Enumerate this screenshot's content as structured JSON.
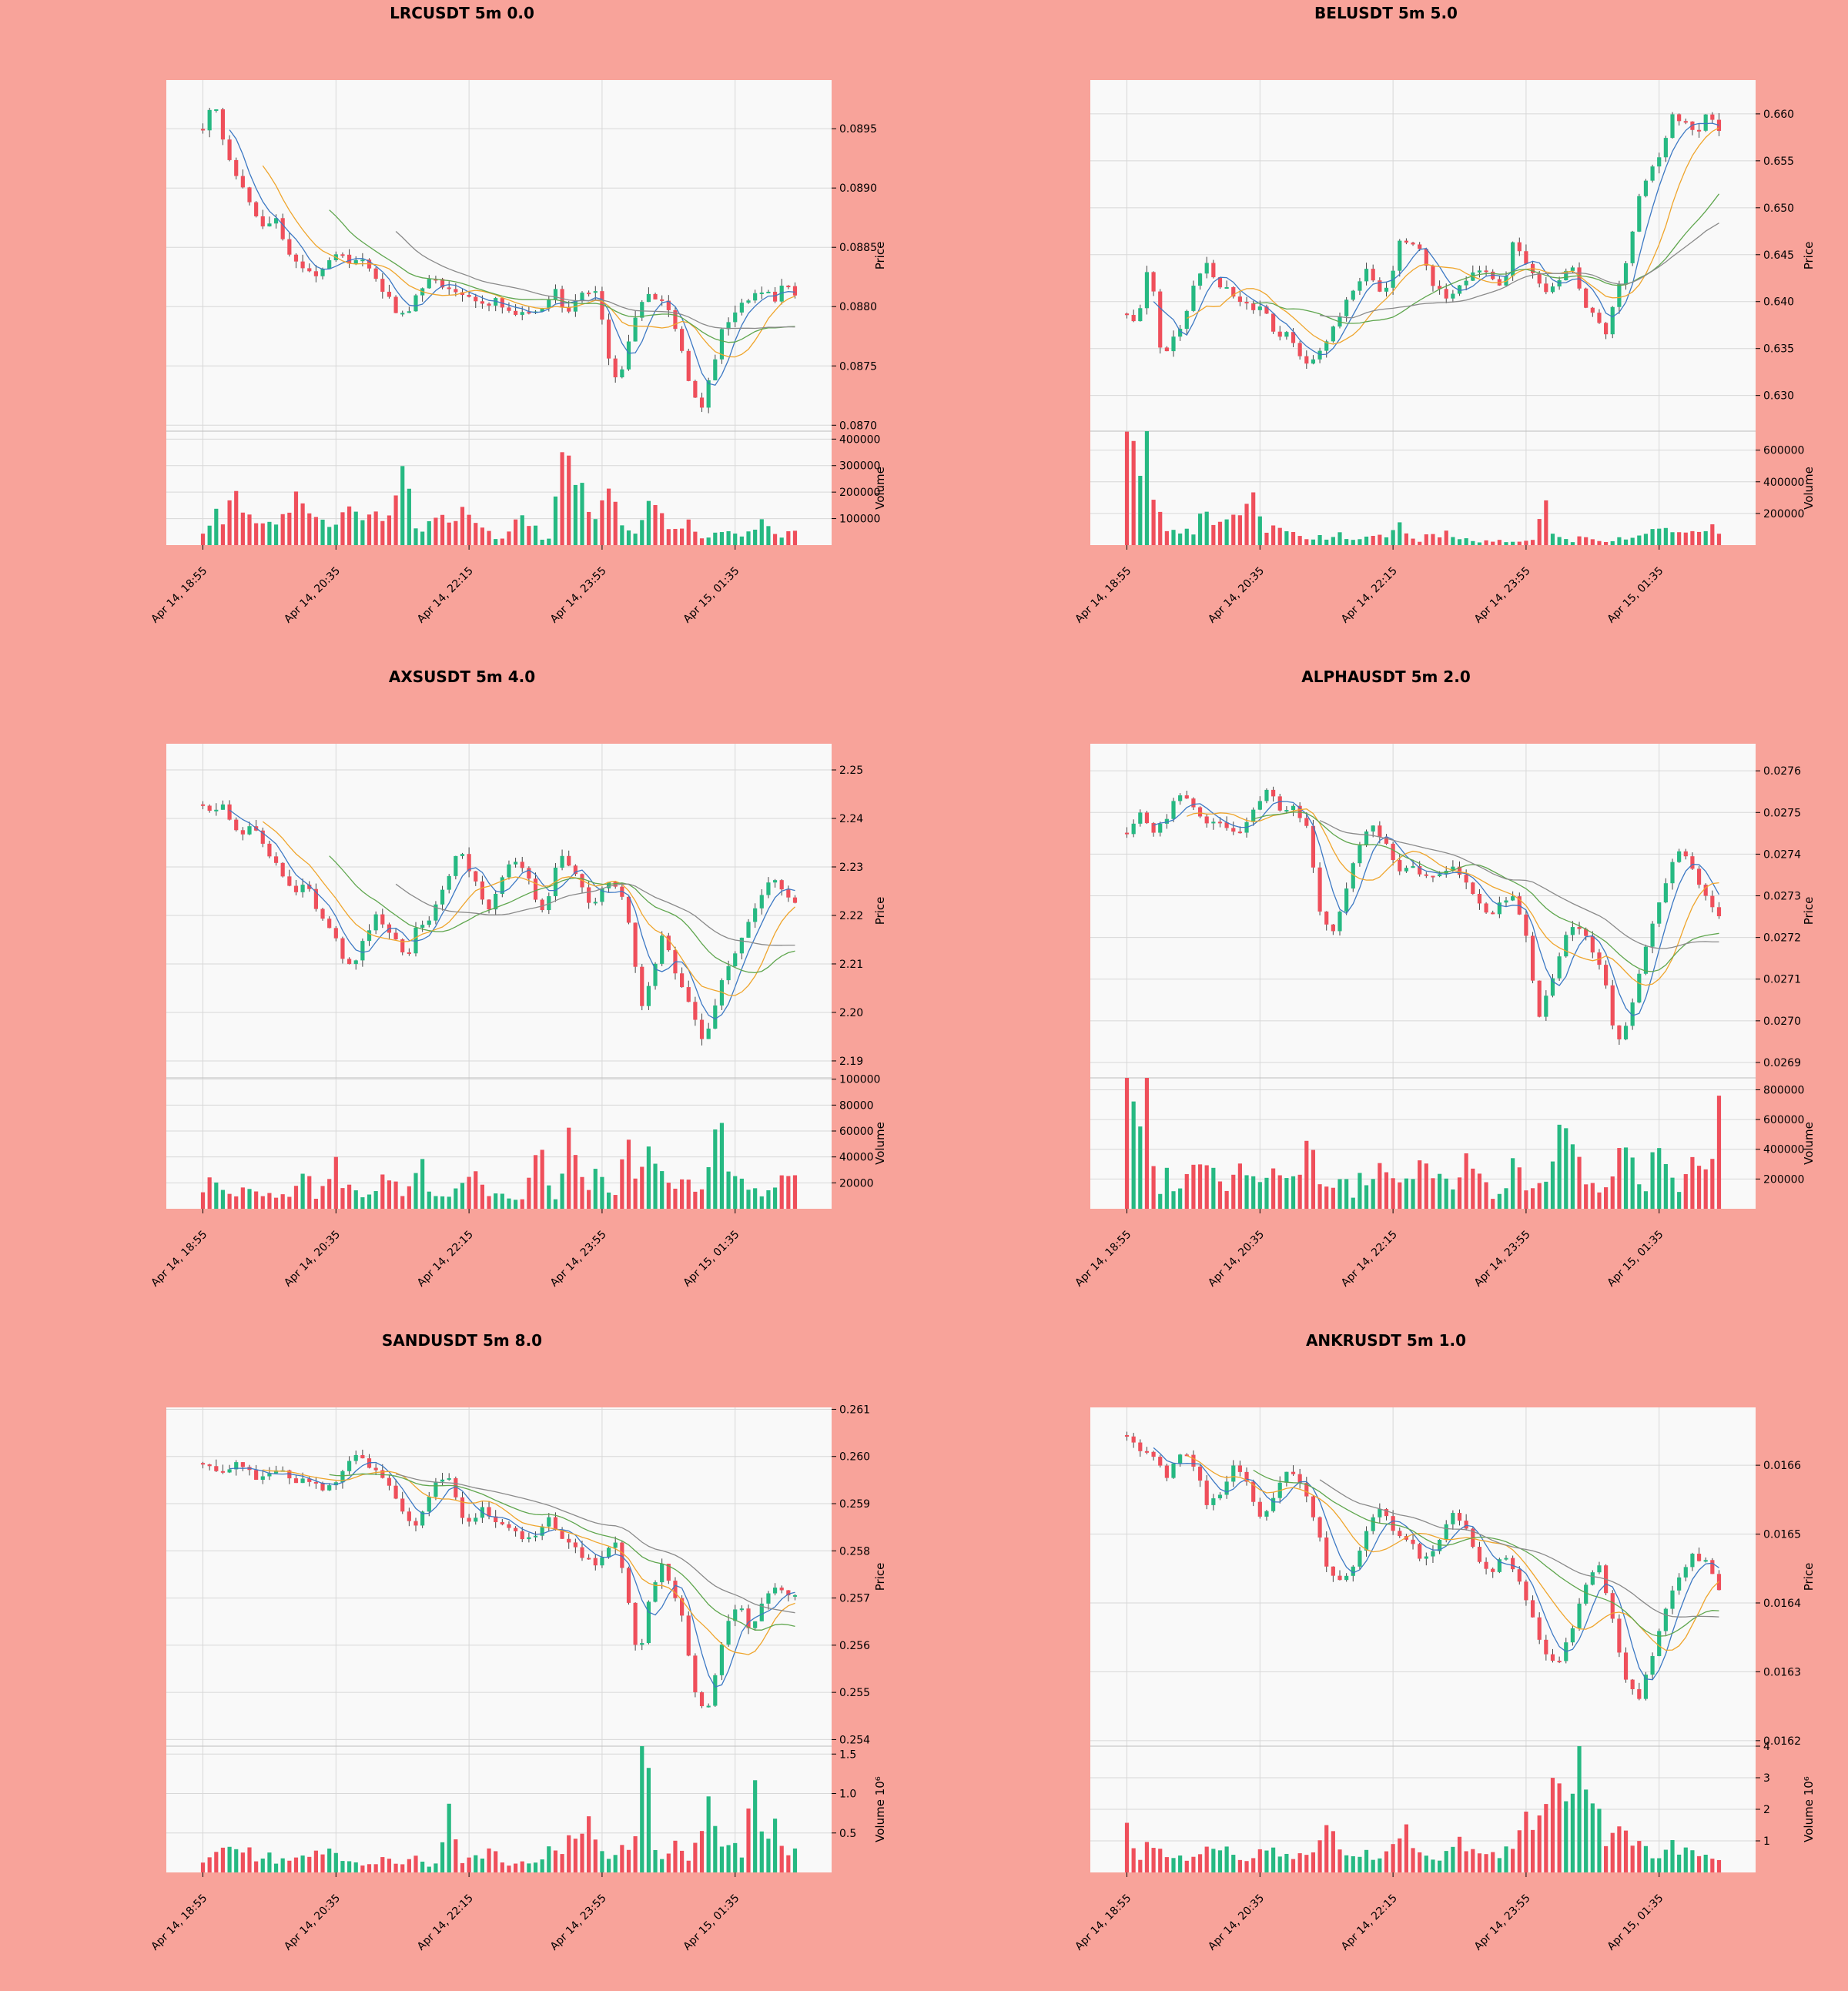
{
  "colors": {
    "background": "#F8A39A",
    "panel": "#F9F9F9",
    "grid": "#D8D8D8",
    "up": "#26B982",
    "down": "#EF4F5B",
    "ma_blue": "#3D79C4",
    "ma_orange": "#EFA52C",
    "ma_green": "#5FA64E",
    "ma_gray": "#8A8A8A"
  },
  "shared": {
    "x_tick_labels": [
      "Apr 14, 18:55",
      "Apr 14, 20:35",
      "Apr 14, 22:15",
      "Apr 14, 23:55",
      "Apr 15, 01:35"
    ],
    "price_axis_label": "Price",
    "volume_axis_label": "Volume"
  },
  "chart_data": [
    {
      "type": "candlestick",
      "title": "LRCUSDT 5m 0.0",
      "ylabel": "Price",
      "ylabel2": "Volume",
      "price_ticks": [
        "0.0895",
        "0.0890",
        "0.0885",
        "0.0880",
        "0.0875",
        "0.0870"
      ],
      "price_tick_values": [
        0.0895,
        0.089,
        0.0885,
        0.088,
        0.0875,
        0.087
      ],
      "price_ylim": [
        0.08695,
        0.08991
      ],
      "volume_ticks": [
        "400000",
        "300000",
        "200000",
        "100000"
      ],
      "volume_tick_values": [
        400000,
        300000,
        200000,
        100000
      ],
      "volume_ylim": [
        0,
        430000
      ],
      "volume_multiplier": "",
      "price_path": [
        0.0895,
        0.08975,
        0.0894,
        0.08915,
        0.08895,
        0.0888,
        0.08865,
        0.08875,
        0.0885,
        0.08835,
        0.0883,
        0.08825,
        0.0884,
        0.08845,
        0.08838,
        0.08842,
        0.08835,
        0.08815,
        0.08805,
        0.0879,
        0.088,
        0.08815,
        0.08828,
        0.08815,
        0.08812,
        0.0881,
        0.08805,
        0.088,
        0.08806,
        0.088,
        0.08795,
        0.08798,
        0.08795,
        0.08802,
        0.08815,
        0.0879,
        0.08805,
        0.08815,
        0.0881,
        0.0876,
        0.08735,
        0.0877,
        0.088,
        0.0881,
        0.08805,
        0.08795,
        0.08765,
        0.08725,
        0.08715,
        0.08745,
        0.0878,
        0.0879,
        0.08805,
        0.0881,
        0.08815,
        0.08805,
        0.08825,
        0.0881
      ],
      "volume_path": [
        50000,
        120000,
        110000,
        180000,
        150000,
        90000,
        60000,
        100000,
        170000,
        180000,
        100000,
        140000,
        70000,
        100000,
        120000,
        90000,
        110000,
        110000,
        180000,
        270000,
        60000,
        60000,
        90000,
        110000,
        90000,
        160000,
        100000,
        60000,
        20000,
        50000,
        100000,
        90000,
        20000,
        20000,
        420000,
        200000,
        230000,
        90000,
        230000,
        130000,
        70000,
        40000,
        150000,
        160000,
        60000,
        70000,
        90000,
        20000,
        30000,
        50000,
        60000,
        40000,
        40000,
        120000,
        40000,
        30000,
        60000
      ]
    },
    {
      "type": "candlestick",
      "title": "BELUSDT 5m 5.0",
      "ylabel": "Price",
      "ylabel2": "Volume",
      "price_ticks": [
        "0.660",
        "0.655",
        "0.650",
        "0.645",
        "0.640",
        "0.635",
        "0.630"
      ],
      "price_tick_values": [
        0.66,
        0.655,
        0.65,
        0.645,
        0.64,
        0.635,
        0.63
      ],
      "price_ylim": [
        0.6262,
        0.6636
      ],
      "volume_ticks": [
        "600000",
        "400000",
        "200000"
      ],
      "volume_tick_values": [
        600000,
        400000,
        200000
      ],
      "volume_ylim": [
        0,
        720000
      ],
      "volume_multiplier": "",
      "price_path": [
        0.6385,
        0.638,
        0.645,
        0.634,
        0.636,
        0.638,
        0.642,
        0.644,
        0.642,
        0.641,
        0.64,
        0.639,
        0.6395,
        0.636,
        0.637,
        0.6345,
        0.6335,
        0.635,
        0.637,
        0.6395,
        0.6415,
        0.6435,
        0.641,
        0.6415,
        0.6465,
        0.646,
        0.645,
        0.6415,
        0.6405,
        0.6415,
        0.6425,
        0.6435,
        0.6425,
        0.641,
        0.647,
        0.644,
        0.642,
        0.641,
        0.642,
        0.644,
        0.64,
        0.6385,
        0.6365,
        0.6405,
        0.645,
        0.651,
        0.654,
        0.656,
        0.66,
        0.659,
        0.658,
        0.66,
        0.658
      ],
      "volume_path": [
        620000,
        550000,
        700000,
        220000,
        100000,
        70000,
        80000,
        90000,
        260000,
        110000,
        130000,
        160000,
        160000,
        290000,
        80000,
        100000,
        110000,
        70000,
        60000,
        40000,
        60000,
        30000,
        70000,
        20000,
        40000,
        60000,
        70000,
        30000,
        180000,
        50000,
        20000,
        60000,
        50000,
        110000,
        30000,
        40000,
        20000,
        30000,
        30000,
        20000,
        20000,
        40000,
        30000,
        250000,
        70000,
        50000,
        20000,
        60000,
        30000,
        30000,
        20000,
        50000,
        40000,
        60000,
        100000,
        100000,
        70000,
        120000,
        80000,
        110000,
        120000,
        90000
      ]
    },
    {
      "type": "candlestick",
      "title": "AXSUSDT 5m 4.0",
      "ylabel": "Price",
      "ylabel2": "Volume",
      "price_ticks": [
        "2.25",
        "2.24",
        "2.23",
        "2.22",
        "2.21",
        "2.20",
        "2.19"
      ],
      "price_tick_values": [
        2.25,
        2.24,
        2.23,
        2.22,
        2.21,
        2.2,
        2.19
      ],
      "price_ylim": [
        2.1865,
        2.2554
      ],
      "volume_ticks": [
        "100000",
        "80000",
        "60000",
        "40000",
        "20000"
      ],
      "volume_tick_values": [
        100000,
        80000,
        60000,
        40000,
        20000
      ],
      "volume_ylim": [
        0,
        101000
      ],
      "volume_multiplier": "",
      "price_path": [
        2.242,
        2.241,
        2.243,
        2.238,
        2.237,
        2.239,
        2.234,
        2.231,
        2.228,
        2.225,
        2.227,
        2.222,
        2.218,
        2.215,
        2.209,
        2.211,
        2.216,
        2.22,
        2.217,
        2.215,
        2.211,
        2.219,
        2.218,
        2.223,
        2.228,
        2.234,
        2.23,
        2.225,
        2.221,
        2.227,
        2.23,
        2.231,
        2.228,
        2.22,
        2.225,
        2.233,
        2.23,
        2.226,
        2.221,
        2.225,
        2.227,
        2.225,
        2.215,
        2.201,
        2.207,
        2.216,
        2.21,
        2.205,
        2.199,
        2.194,
        2.2,
        2.208,
        2.211,
        2.216,
        2.221,
        2.225,
        2.228,
        2.224,
        2.223
      ],
      "volume_path": [
        15000,
        31000,
        12000,
        10000,
        16000,
        15000,
        12000,
        14000,
        10000,
        12000,
        14000,
        26000,
        8000,
        18000,
        42000,
        9000,
        20000,
        10000,
        18000,
        20000,
        26000,
        8000,
        14000,
        48000,
        10000,
        14000,
        7000,
        18000,
        14000,
        30000,
        12000,
        14000,
        10000,
        8000,
        6000,
        40000,
        42000,
        8000,
        8000,
        78000,
        34000,
        20000,
        28000,
        14000,
        9000,
        48000,
        32000,
        42000,
        38000,
        30000,
        20000,
        18000,
        18000,
        14000,
        30000,
        94000,
        20000,
        20000,
        20000,
        14000,
        12000,
        16000,
        24000,
        20000
      ]
    },
    {
      "type": "candlestick",
      "title": "ALPHAUSDT 5m 2.0",
      "ylabel": "Price",
      "ylabel2": "Volume",
      "price_ticks": [
        "0.0276",
        "0.0275",
        "0.0274",
        "0.0273",
        "0.0272",
        "0.0271",
        "0.0270",
        "0.0269"
      ],
      "price_tick_values": [
        0.0276,
        0.0275,
        0.0274,
        0.0273,
        0.0272,
        0.0271,
        0.027,
        0.0269
      ],
      "price_ylim": [
        0.026863,
        0.027665
      ],
      "volume_ticks": [
        "800000",
        "600000",
        "400000",
        "200000"
      ],
      "volume_tick_values": [
        800000,
        600000,
        400000,
        200000
      ],
      "volume_ylim": [
        0,
        880000
      ],
      "volume_multiplier": "",
      "price_path": [
        0.02745,
        0.0275,
        0.02745,
        0.02748,
        0.02755,
        0.02752,
        0.02747,
        0.02749,
        0.02745,
        0.02746,
        0.02752,
        0.02756,
        0.0275,
        0.02751,
        0.02746,
        0.02726,
        0.02721,
        0.02731,
        0.02742,
        0.02748,
        0.02743,
        0.02736,
        0.02738,
        0.02735,
        0.02734,
        0.02737,
        0.02735,
        0.0273,
        0.02725,
        0.02728,
        0.0273,
        0.0272,
        0.027,
        0.0271,
        0.0272,
        0.02723,
        0.02718,
        0.02712,
        0.02695,
        0.027,
        0.02715,
        0.02725,
        0.02735,
        0.02742,
        0.02736,
        0.0273,
        0.02725
      ],
      "volume_path": [
        820000,
        420000,
        800000,
        80000,
        250000,
        80000,
        300000,
        280000,
        260000,
        260000,
        130000,
        240000,
        220000,
        200000,
        250000,
        180000,
        300000,
        200000,
        500000,
        160000,
        80000,
        240000,
        80000,
        240000,
        150000,
        400000,
        220000,
        140000,
        200000,
        400000,
        180000,
        240000,
        150000,
        300000,
        280000,
        160000,
        50000,
        150000,
        400000,
        120000,
        170000,
        160000,
        340000,
        720000,
        330000,
        180000,
        160000,
        120000,
        430000,
        340000,
        200000,
        140000,
        500000,
        230000,
        150000,
        200000,
        400000,
        160000,
        640000
      ]
    },
    {
      "type": "candlestick",
      "title": "SANDUSDT 5m 8.0",
      "ylabel": "Price",
      "ylabel2": "Volume  10⁶",
      "price_ticks": [
        "0.261",
        "0.260",
        "0.259",
        "0.258",
        "0.257",
        "0.256",
        "0.255",
        "0.254"
      ],
      "price_tick_values": [
        0.261,
        0.26,
        0.259,
        0.258,
        0.257,
        0.256,
        0.255,
        0.254
      ],
      "price_ylim": [
        0.25386,
        0.26104
      ],
      "volume_ticks": [
        "1.5",
        "1.0",
        "0.5"
      ],
      "volume_tick_values": [
        1.5,
        1.0,
        0.5
      ],
      "volume_ylim": [
        0,
        1.6
      ],
      "volume_multiplier": "1e6",
      "price_path": [
        0.2598,
        0.2597,
        0.2596,
        0.2599,
        0.2597,
        0.2595,
        0.2596,
        0.2597,
        0.2594,
        0.2596,
        0.2594,
        0.2593,
        0.2595,
        0.2599,
        0.2601,
        0.2597,
        0.2596,
        0.2592,
        0.2588,
        0.2585,
        0.2591,
        0.2595,
        0.2596,
        0.2588,
        0.2586,
        0.2589,
        0.2587,
        0.2585,
        0.2584,
        0.2582,
        0.2584,
        0.2587,
        0.2583,
        0.2581,
        0.2579,
        0.2577,
        0.258,
        0.2582,
        0.2571,
        0.2556,
        0.257,
        0.2578,
        0.2572,
        0.2565,
        0.2551,
        0.2545,
        0.2555,
        0.2565,
        0.257,
        0.2562,
        0.2569,
        0.2573,
        0.2572,
        0.257
      ],
      "volume_path": [
        150000,
        200000,
        280000,
        330000,
        370000,
        110000,
        240000,
        120000,
        190000,
        250000,
        270000,
        270000,
        230000,
        120000,
        120000,
        120000,
        110000,
        200000,
        100000,
        120000,
        220000,
        100000,
        130000,
        800000,
        140000,
        160000,
        220000,
        280000,
        140000,
        90000,
        120000,
        170000,
        270000,
        200000,
        420000,
        330000,
        620000,
        340000,
        160000,
        380000,
        220000,
        1520000,
        310000,
        140000,
        340000,
        160000,
        370000,
        1250000,
        440000,
        500000,
        130000,
        1440000,
        350000,
        740000,
        200000,
        280000
      ]
    },
    {
      "type": "candlestick",
      "title": "ANKRUSDT 5m 1.0",
      "ylabel": "Price",
      "ylabel2": "Volume  10⁶",
      "price_ticks": [
        "0.0166",
        "0.0165",
        "0.0164",
        "0.0163",
        "0.0162"
      ],
      "price_tick_values": [
        0.0166,
        0.0165,
        0.0164,
        0.0163,
        0.0162
      ],
      "price_ylim": [
        0.016192,
        0.016684
      ],
      "volume_ticks": [
        "4",
        "3",
        "2",
        "1"
      ],
      "volume_tick_values": [
        4,
        3,
        2,
        1
      ],
      "volume_ylim": [
        0,
        4.0
      ],
      "volume_multiplier": "1e6",
      "price_path": [
        0.016645,
        0.01662,
        0.01661,
        0.01658,
        0.01662,
        0.0166,
        0.01654,
        0.01656,
        0.0166,
        0.01657,
        0.01652,
        0.01656,
        0.0166,
        0.01657,
        0.01652,
        0.01644,
        0.01643,
        0.01646,
        0.01652,
        0.01654,
        0.0165,
        0.01649,
        0.01646,
        0.01648,
        0.01653,
        0.01652,
        0.01646,
        0.01644,
        0.01647,
        0.01644,
        0.01639,
        0.01633,
        0.01631,
        0.01636,
        0.01642,
        0.01646,
        0.01639,
        0.01629,
        0.01626,
        0.01632,
        0.01639,
        0.01644,
        0.01647,
        0.01646,
        0.01642
      ],
      "volume_path": [
        1400000,
        500000,
        1100000,
        600000,
        500000,
        300000,
        600000,
        700000,
        900000,
        500000,
        500000,
        800000,
        600000,
        400000,
        500000,
        600000,
        1400000,
        500000,
        700000,
        600000,
        500000,
        900000,
        1800000,
        600000,
        400000,
        500000,
        1000000,
        800000,
        700000,
        500000,
        700000,
        900000,
        1800000,
        2100000,
        3900000,
        1500000,
        3900000,
        2500000,
        800000,
        1900000,
        1000000,
        700000,
        500000,
        1000000,
        700000,
        800000,
        600000,
        400000
      ]
    }
  ]
}
